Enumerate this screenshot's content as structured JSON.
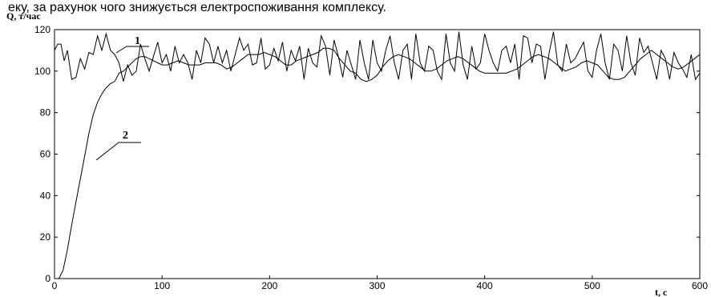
{
  "caption_line": "еку, за рахунок чого знижується  електроспоживання комплексу.",
  "chart_data": {
    "type": "line",
    "title": "",
    "xlabel": "t, c",
    "ylabel": "Q, т/час",
    "xlim": [
      0,
      600
    ],
    "ylim": [
      0,
      120
    ],
    "x_ticks": [
      0,
      100,
      200,
      300,
      400,
      500,
      600
    ],
    "y_ticks": [
      0,
      20,
      40,
      60,
      80,
      100,
      120
    ],
    "grid": false,
    "series": [
      {
        "name": "1",
        "color": "#000000",
        "x": [
          0,
          3,
          6,
          9,
          12,
          16,
          20,
          24,
          28,
          32,
          36,
          40,
          44,
          48,
          52,
          56,
          60,
          64,
          68,
          72,
          76,
          80,
          84,
          88,
          92,
          96,
          100,
          104,
          108,
          112,
          116,
          120,
          124,
          128,
          132,
          136,
          140,
          144,
          148,
          152,
          156,
          160,
          164,
          168,
          172,
          176,
          180,
          184,
          188,
          192,
          196,
          200,
          204,
          208,
          212,
          216,
          220,
          224,
          228,
          232,
          236,
          240,
          244,
          248,
          252,
          256,
          260,
          264,
          268,
          272,
          276,
          280,
          284,
          288,
          292,
          296,
          300,
          304,
          308,
          312,
          316,
          320,
          324,
          328,
          332,
          336,
          340,
          344,
          348,
          352,
          356,
          360,
          364,
          368,
          372,
          376,
          380,
          384,
          388,
          392,
          396,
          400,
          404,
          408,
          412,
          416,
          420,
          424,
          428,
          432,
          436,
          440,
          444,
          448,
          452,
          456,
          460,
          464,
          468,
          472,
          476,
          480,
          484,
          488,
          492,
          496,
          500,
          504,
          508,
          512,
          516,
          520,
          524,
          528,
          532,
          536,
          540,
          544,
          548,
          552,
          556,
          560,
          564,
          568,
          572,
          576,
          580,
          584,
          588,
          592,
          596,
          600
        ],
        "y": [
          110,
          113,
          113,
          105,
          110,
          96,
          97,
          106,
          101,
          109,
          108,
          117,
          110,
          118,
          110,
          108,
          104,
          95,
          103,
          98,
          100,
          113,
          106,
          100,
          107,
          114,
          104,
          108,
          100,
          112,
          104,
          108,
          104,
          96,
          110,
          104,
          116,
          113,
          104,
          112,
          104,
          110,
          100,
          108,
          116,
          110,
          113,
          103,
          104,
          116,
          101,
          103,
          111,
          105,
          114,
          100,
          110,
          105,
          112,
          96,
          111,
          104,
          102,
          117,
          112,
          98,
          115,
          107,
          97,
          110,
          103,
          96,
          115,
          104,
          96,
          115,
          104,
          100,
          110,
          117,
          104,
          96,
          110,
          113,
          96,
          118,
          104,
          100,
          112,
          110,
          100,
          96,
          118,
          104,
          100,
          119,
          103,
          96,
          112,
          101,
          104,
          118,
          110,
          104,
          100,
          110,
          112,
          104,
          113,
          96,
          117,
          116,
          104,
          113,
          112,
          96,
          109,
          119,
          103,
          100,
          113,
          104,
          106,
          110,
          114,
          100,
          97,
          110,
          118,
          104,
          96,
          113,
          110,
          100,
          117,
          104,
          98,
          116,
          109,
          112,
          104,
          96,
          110,
          106,
          96,
          109,
          104,
          101,
          97,
          108,
          96,
          99
        ]
      },
      {
        "name": "2",
        "color": "#000000",
        "x": [
          0,
          4,
          8,
          12,
          16,
          20,
          24,
          28,
          32,
          36,
          40,
          44,
          48,
          52,
          56,
          60,
          64,
          68,
          72,
          76,
          80,
          84,
          88,
          92,
          96,
          100,
          105,
          110,
          115,
          120,
          125,
          130,
          135,
          140,
          145,
          150,
          155,
          160,
          165,
          170,
          175,
          180,
          185,
          190,
          195,
          200,
          205,
          210,
          215,
          220,
          225,
          230,
          235,
          240,
          245,
          250,
          255,
          260,
          265,
          270,
          275,
          280,
          285,
          290,
          295,
          300,
          305,
          310,
          315,
          320,
          325,
          330,
          335,
          340,
          345,
          350,
          355,
          360,
          365,
          370,
          375,
          380,
          385,
          390,
          395,
          400,
          405,
          410,
          415,
          420,
          425,
          430,
          435,
          440,
          445,
          450,
          455,
          460,
          465,
          470,
          475,
          480,
          485,
          490,
          495,
          500,
          505,
          510,
          515,
          520,
          525,
          530,
          535,
          540,
          545,
          550,
          555,
          560,
          565,
          570,
          575,
          580,
          585,
          590,
          595,
          600
        ],
        "y": [
          0,
          0,
          4,
          14,
          26,
          37,
          48,
          59,
          70,
          79,
          85,
          89,
          92,
          94,
          95,
          99,
          100,
          102,
          104,
          106,
          107,
          107,
          106,
          105,
          104,
          103,
          103,
          104,
          105,
          104,
          103,
          103,
          103,
          104,
          104,
          104,
          103,
          101,
          102,
          104,
          106,
          108,
          108,
          108,
          109,
          108,
          107,
          105,
          103,
          103,
          105,
          106,
          107,
          108,
          109,
          111,
          111,
          110,
          106,
          103,
          100,
          99,
          96,
          95,
          96,
          98,
          102,
          105,
          107,
          108,
          107,
          106,
          104,
          102,
          100,
          100,
          101,
          103,
          105,
          106,
          107,
          106,
          104,
          102,
          100,
          99,
          99,
          99,
          99,
          99,
          100,
          101,
          103,
          105,
          107,
          108,
          107,
          106,
          104,
          102,
          100,
          101,
          102,
          104,
          105,
          104,
          103,
          100,
          97,
          96,
          96,
          97,
          100,
          103,
          106,
          108,
          110,
          108,
          106,
          104,
          102,
          101,
          102,
          104,
          106,
          108
        ]
      }
    ]
  }
}
